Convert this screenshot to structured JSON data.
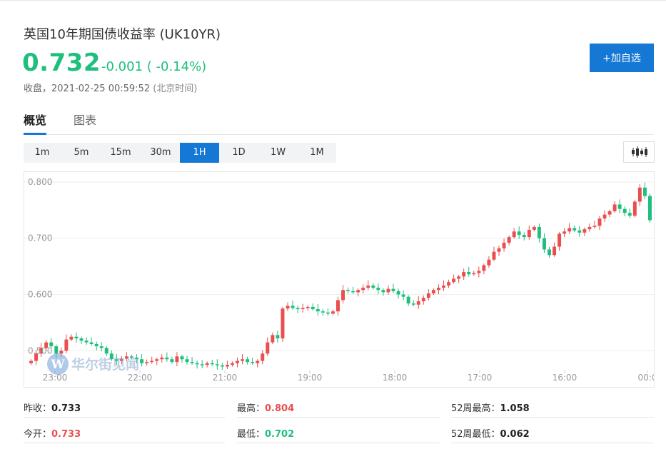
{
  "quote": {
    "title": "英国10年期国债收益率 (UK10YR)",
    "price": "0.732",
    "change": "-0.001 ( -0.14%)",
    "status_label": "收盘，",
    "datetime": "2021-02-25 00:59:52",
    "timezone": "(北京时间)"
  },
  "actions": {
    "add_watchlist": "+加自选"
  },
  "tabs": [
    {
      "label": "概览"
    },
    {
      "label": "图表"
    }
  ],
  "periods": [
    {
      "label": "1m"
    },
    {
      "label": "5m"
    },
    {
      "label": "15m"
    },
    {
      "label": "30m"
    },
    {
      "label": "1H"
    },
    {
      "label": "1D"
    },
    {
      "label": "1W"
    },
    {
      "label": "1M"
    }
  ],
  "selected_period": "1H",
  "chart_data": {
    "type": "candlestick",
    "ylim": [
      0.465,
      0.81
    ],
    "yticks": [
      "0.800",
      "0.700",
      "0.600",
      "0.500"
    ],
    "ytick_values": [
      0.8,
      0.7,
      0.6,
      0.5
    ],
    "xticks": [
      "23:00",
      "22:00",
      "21:00",
      "19:00",
      "18:00",
      "17:00",
      "16:00",
      "00:0"
    ],
    "grid": true,
    "colors": {
      "up": "#e94f4f",
      "down": "#1dbf7d"
    },
    "closes": [
      0.482,
      0.495,
      0.505,
      0.515,
      0.508,
      0.495,
      0.5,
      0.52,
      0.525,
      0.522,
      0.518,
      0.515,
      0.512,
      0.508,
      0.505,
      0.495,
      0.485,
      0.482,
      0.486,
      0.49,
      0.488,
      0.485,
      0.478,
      0.48,
      0.482,
      0.485,
      0.488,
      0.485,
      0.48,
      0.49,
      0.485,
      0.48,
      0.478,
      0.476,
      0.475,
      0.478,
      0.476,
      0.474,
      0.472,
      0.475,
      0.478,
      0.482,
      0.485,
      0.48,
      0.478,
      0.482,
      0.495,
      0.515,
      0.528,
      0.522,
      0.575,
      0.58,
      0.576,
      0.574,
      0.576,
      0.578,
      0.574,
      0.57,
      0.568,
      0.566,
      0.57,
      0.59,
      0.608,
      0.606,
      0.604,
      0.608,
      0.612,
      0.616,
      0.612,
      0.608,
      0.604,
      0.61,
      0.606,
      0.6,
      0.596,
      0.584,
      0.582,
      0.588,
      0.594,
      0.602,
      0.608,
      0.612,
      0.616,
      0.622,
      0.628,
      0.632,
      0.64,
      0.636,
      0.638,
      0.642,
      0.652,
      0.662,
      0.676,
      0.682,
      0.692,
      0.702,
      0.712,
      0.706,
      0.702,
      0.715,
      0.72,
      0.7,
      0.68,
      0.67,
      0.685,
      0.708,
      0.712,
      0.718,
      0.714,
      0.71,
      0.716,
      0.72,
      0.722,
      0.735,
      0.742,
      0.748,
      0.76,
      0.752,
      0.745,
      0.74,
      0.765,
      0.79,
      0.775,
      0.732
    ]
  },
  "stats": [
    {
      "label": "昨收：",
      "value": "0.733",
      "tone": "dark"
    },
    {
      "label": "最高：",
      "value": "0.804",
      "tone": "red"
    },
    {
      "label": "52周最高：",
      "value": "1.058",
      "tone": "dark"
    },
    {
      "label": "今开：",
      "value": "0.733",
      "tone": "red"
    },
    {
      "label": "最低：",
      "value": "0.702",
      "tone": "green"
    },
    {
      "label": "52周最低：",
      "value": "0.062",
      "tone": "dark"
    }
  ],
  "watermark": {
    "text": "华尔街见闻"
  },
  "icons": {
    "chart_type": "candlestick-icon",
    "watermark": "wallstreetcn-logo-icon"
  }
}
